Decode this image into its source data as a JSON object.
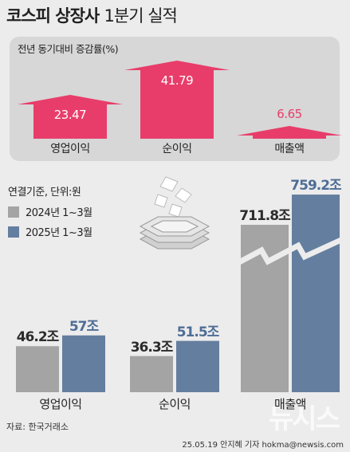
{
  "header": {
    "title_main": "코스피 상장사",
    "title_sub": "1분기 실적"
  },
  "growth_panel": {
    "title": "전년 동기대비 증감률(%)",
    "items": [
      {
        "label": "영업이익",
        "value": "23.47"
      },
      {
        "label": "순이익",
        "value": "41.79"
      },
      {
        "label": "매출액",
        "value": "6.65"
      }
    ]
  },
  "legend": {
    "basis": "연결기준, 단위:원",
    "series": [
      {
        "name": "2024년 1~3월",
        "color": "#a4a4a4"
      },
      {
        "name": "2025년 1~3월",
        "color": "#647e9f"
      }
    ]
  },
  "chart_data": [
    {
      "type": "bar",
      "title": "전년 동기대비 증감률(%)",
      "categories": [
        "영업이익",
        "순이익",
        "매출액"
      ],
      "values": [
        23.47,
        41.79,
        6.65
      ]
    },
    {
      "type": "bar",
      "categories": [
        "영업이익",
        "순이익",
        "매출액"
      ],
      "series": [
        {
          "name": "2024년 1~3월",
          "values": [
            46.2,
            36.3,
            711.8
          ],
          "labels": [
            "46.2조",
            "36.3조",
            "711.8조"
          ]
        },
        {
          "name": "2025년 1~3월",
          "values": [
            57,
            51.5,
            759.2
          ],
          "labels": [
            "57조",
            "51.5조",
            "759.2조"
          ]
        }
      ],
      "broken_axis_category": "매출액"
    }
  ],
  "colors": {
    "growth": "#e83d6a",
    "dark_value": "#2b2b2b",
    "new_value": "#4e6d96"
  },
  "footer": {
    "source": "자료: 한국거래소",
    "credit": "25.05.19 안지혜 기자 hokma@newsis.com",
    "watermark": "뉴시스"
  },
  "icon": "paper-stack-icon"
}
